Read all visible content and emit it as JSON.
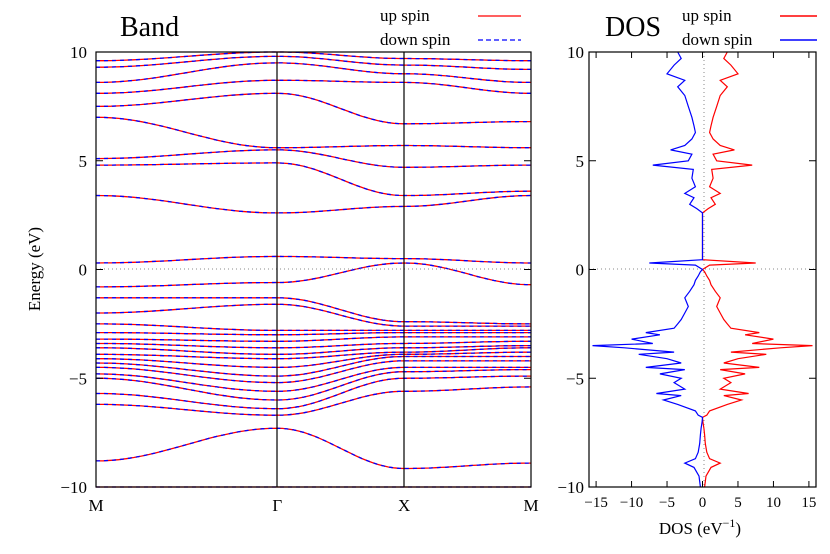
{
  "chart_data": [
    {
      "type": "line",
      "title": "Band",
      "xlabel": "",
      "ylabel": "Energy (eV)",
      "ylim": [
        -10,
        10
      ],
      "yticks": [
        -10,
        -5,
        0,
        5,
        10
      ],
      "ytick_labels": [
        "−10",
        "−5",
        "0",
        "5",
        "10"
      ],
      "xticks": [
        {
          "label": "M",
          "k": 0
        },
        {
          "label": "Γ",
          "k": 1
        },
        {
          "label": "X",
          "k": 1.7
        },
        {
          "label": "M",
          "k": 2.4
        }
      ],
      "vlines_at_k": [
        1,
        1.7
      ],
      "fermi_level": 0,
      "grid": false,
      "legend_position": "top-right, above plot",
      "series": [
        {
          "name": "up spin",
          "color": "#ff0000",
          "dash": "solid"
        },
        {
          "name": "down spin",
          "color": "#0000ff",
          "dash": "dashed"
        }
      ],
      "k_nodes": [
        0,
        1,
        1.7,
        2.4
      ],
      "bands": [
        [
          -10.0,
          -10.0,
          -10.0,
          -10.0
        ],
        [
          -8.8,
          -7.3,
          -9.15,
          -8.9
        ],
        [
          -6.2,
          -6.7,
          -5.6,
          -5.4
        ],
        [
          -5.7,
          -6.4,
          -5.0,
          -4.9
        ],
        [
          -5.0,
          -6.0,
          -4.7,
          -4.6
        ],
        [
          -4.8,
          -5.6,
          -4.5,
          -4.5
        ],
        [
          -4.5,
          -5.2,
          -4.2,
          -4.2
        ],
        [
          -4.3,
          -4.9,
          -4.0,
          -4.0
        ],
        [
          -4.1,
          -4.5,
          -3.9,
          -3.8
        ],
        [
          -3.9,
          -4.1,
          -3.8,
          -3.6
        ],
        [
          -3.6,
          -3.9,
          -3.6,
          -3.5
        ],
        [
          -3.4,
          -3.6,
          -3.4,
          -3.3
        ],
        [
          -3.2,
          -3.3,
          -3.1,
          -3.1
        ],
        [
          -2.9,
          -3.0,
          -2.9,
          -2.9
        ],
        [
          -2.5,
          -2.8,
          -2.8,
          -2.8
        ],
        [
          -2.0,
          -1.6,
          -2.6,
          -2.6
        ],
        [
          -1.3,
          -1.3,
          -2.4,
          -2.5
        ],
        [
          -0.8,
          -0.6,
          0.3,
          -0.7
        ],
        [
          0.3,
          0.6,
          0.5,
          0.3
        ],
        [
          3.4,
          2.6,
          2.9,
          3.4
        ],
        [
          4.8,
          4.9,
          3.4,
          3.6
        ],
        [
          5.1,
          5.5,
          4.7,
          4.8
        ],
        [
          7.0,
          5.6,
          5.7,
          5.6
        ],
        [
          7.5,
          8.1,
          6.7,
          6.8
        ],
        [
          8.1,
          8.7,
          8.6,
          8.1
        ],
        [
          8.6,
          9.5,
          9.0,
          8.6
        ],
        [
          9.3,
          9.8,
          9.4,
          9.2
        ],
        [
          9.6,
          10.0,
          9.7,
          9.6
        ]
      ]
    },
    {
      "type": "line",
      "title": "DOS",
      "xlabel": "DOS (eV−1)",
      "xlabel_main": "DOS (eV",
      "xlabel_sup": "−1",
      "xlabel_close": ")",
      "ylabel": "",
      "xlim": [
        -16,
        16
      ],
      "ylim": [
        -10,
        10
      ],
      "xticks": [
        -15,
        -10,
        -5,
        0,
        5,
        10,
        15
      ],
      "xtick_labels": [
        "−15",
        "−10",
        "−5",
        "0",
        "5",
        "10",
        "15"
      ],
      "yticks": [
        -10,
        -5,
        0,
        5,
        10
      ],
      "ytick_labels": [
        "−10",
        "−5",
        "0",
        "5",
        "10"
      ],
      "fermi_level": 0,
      "grid": false,
      "legend_position": "top-right, above plot",
      "series": [
        {
          "name": "up spin",
          "color": "#ff0000",
          "sign": 1,
          "points": [
            [
              -10.0,
              0.3
            ],
            [
              -9.5,
              0.5
            ],
            [
              -9.1,
              1.2
            ],
            [
              -8.9,
              2.5
            ],
            [
              -8.7,
              1.0
            ],
            [
              -8.4,
              0.6
            ],
            [
              -8.0,
              0.4
            ],
            [
              -7.6,
              0.3
            ],
            [
              -7.3,
              0.2
            ],
            [
              -7.0,
              0.05
            ],
            [
              -6.8,
              0.0
            ],
            [
              -6.7,
              0.6
            ],
            [
              -6.5,
              1.0
            ],
            [
              -6.2,
              3.5
            ],
            [
              -6.0,
              5.5
            ],
            [
              -5.8,
              3.0
            ],
            [
              -5.7,
              6.5
            ],
            [
              -5.5,
              2.5
            ],
            [
              -5.2,
              4.0
            ],
            [
              -5.0,
              3.0
            ],
            [
              -4.8,
              6.0
            ],
            [
              -4.6,
              2.5
            ],
            [
              -4.5,
              8.0
            ],
            [
              -4.3,
              3.0
            ],
            [
              -4.1,
              5.0
            ],
            [
              -3.9,
              9.0
            ],
            [
              -3.8,
              4.0
            ],
            [
              -3.6,
              11.0
            ],
            [
              -3.5,
              15.5
            ],
            [
              -3.4,
              7.0
            ],
            [
              -3.2,
              10.0
            ],
            [
              -3.0,
              6.0
            ],
            [
              -2.9,
              8.0
            ],
            [
              -2.7,
              4.0
            ],
            [
              -2.5,
              3.5
            ],
            [
              -2.3,
              3.0
            ],
            [
              -2.0,
              2.5
            ],
            [
              -1.7,
              2.0
            ],
            [
              -1.3,
              2.5
            ],
            [
              -1.0,
              1.8
            ],
            [
              -0.7,
              1.2
            ],
            [
              -0.5,
              1.0
            ],
            [
              -0.3,
              0.6
            ],
            [
              -0.1,
              0.3
            ],
            [
              0.0,
              0.0
            ],
            [
              0.2,
              1.0
            ],
            [
              0.3,
              7.5
            ],
            [
              0.45,
              0.0
            ],
            [
              0.6,
              0.0
            ],
            [
              1.5,
              0.0
            ],
            [
              2.6,
              0.0
            ],
            [
              2.8,
              0.8
            ],
            [
              3.0,
              1.8
            ],
            [
              3.3,
              1.2
            ],
            [
              3.5,
              2.5
            ],
            [
              3.8,
              1.0
            ],
            [
              4.2,
              1.5
            ],
            [
              4.6,
              1.3
            ],
            [
              4.8,
              7.0
            ],
            [
              5.0,
              2.0
            ],
            [
              5.3,
              1.5
            ],
            [
              5.5,
              4.5
            ],
            [
              5.7,
              2.5
            ],
            [
              6.0,
              1.5
            ],
            [
              6.3,
              1.0
            ],
            [
              6.6,
              1.2
            ],
            [
              7.0,
              1.5
            ],
            [
              7.5,
              2.0
            ],
            [
              8.0,
              2.5
            ],
            [
              8.4,
              3.5
            ],
            [
              8.7,
              2.5
            ],
            [
              9.0,
              5.0
            ],
            [
              9.4,
              4.0
            ],
            [
              9.7,
              3.0
            ],
            [
              10.0,
              3.5
            ]
          ]
        },
        {
          "name": "down spin",
          "color": "#0000ff",
          "sign": -1,
          "points": [
            [
              -10.0,
              0.3
            ],
            [
              -9.5,
              0.5
            ],
            [
              -9.1,
              1.2
            ],
            [
              -8.9,
              2.5
            ],
            [
              -8.7,
              1.0
            ],
            [
              -8.4,
              0.6
            ],
            [
              -8.0,
              0.4
            ],
            [
              -7.6,
              0.3
            ],
            [
              -7.3,
              0.2
            ],
            [
              -7.0,
              0.05
            ],
            [
              -6.8,
              0.0
            ],
            [
              -6.7,
              0.6
            ],
            [
              -6.5,
              1.0
            ],
            [
              -6.2,
              3.5
            ],
            [
              -6.0,
              5.5
            ],
            [
              -5.8,
              3.0
            ],
            [
              -5.7,
              6.5
            ],
            [
              -5.5,
              2.5
            ],
            [
              -5.2,
              4.0
            ],
            [
              -5.0,
              3.0
            ],
            [
              -4.8,
              6.0
            ],
            [
              -4.6,
              2.5
            ],
            [
              -4.5,
              8.0
            ],
            [
              -4.3,
              3.0
            ],
            [
              -4.1,
              5.0
            ],
            [
              -3.9,
              9.0
            ],
            [
              -3.8,
              4.0
            ],
            [
              -3.6,
              11.0
            ],
            [
              -3.5,
              15.5
            ],
            [
              -3.4,
              7.0
            ],
            [
              -3.2,
              10.0
            ],
            [
              -3.0,
              6.0
            ],
            [
              -2.9,
              8.0
            ],
            [
              -2.7,
              4.0
            ],
            [
              -2.5,
              3.5
            ],
            [
              -2.3,
              3.0
            ],
            [
              -2.0,
              2.5
            ],
            [
              -1.7,
              2.0
            ],
            [
              -1.3,
              2.5
            ],
            [
              -1.0,
              1.8
            ],
            [
              -0.7,
              1.2
            ],
            [
              -0.5,
              1.0
            ],
            [
              -0.3,
              0.6
            ],
            [
              -0.1,
              0.3
            ],
            [
              0.0,
              0.0
            ],
            [
              0.2,
              1.0
            ],
            [
              0.3,
              7.5
            ],
            [
              0.45,
              0.0
            ],
            [
              0.6,
              0.0
            ],
            [
              1.5,
              0.0
            ],
            [
              2.6,
              0.0
            ],
            [
              2.8,
              0.8
            ],
            [
              3.0,
              1.8
            ],
            [
              3.3,
              1.2
            ],
            [
              3.5,
              2.5
            ],
            [
              3.8,
              1.0
            ],
            [
              4.2,
              1.5
            ],
            [
              4.6,
              1.3
            ],
            [
              4.8,
              7.0
            ],
            [
              5.0,
              2.0
            ],
            [
              5.3,
              1.5
            ],
            [
              5.5,
              4.5
            ],
            [
              5.7,
              2.5
            ],
            [
              6.0,
              1.5
            ],
            [
              6.3,
              1.0
            ],
            [
              6.6,
              1.2
            ],
            [
              7.0,
              1.5
            ],
            [
              7.5,
              2.0
            ],
            [
              8.0,
              2.5
            ],
            [
              8.4,
              3.5
            ],
            [
              8.7,
              2.5
            ],
            [
              9.0,
              5.0
            ],
            [
              9.4,
              4.0
            ],
            [
              9.7,
              3.0
            ],
            [
              10.0,
              3.5
            ]
          ]
        }
      ]
    }
  ]
}
